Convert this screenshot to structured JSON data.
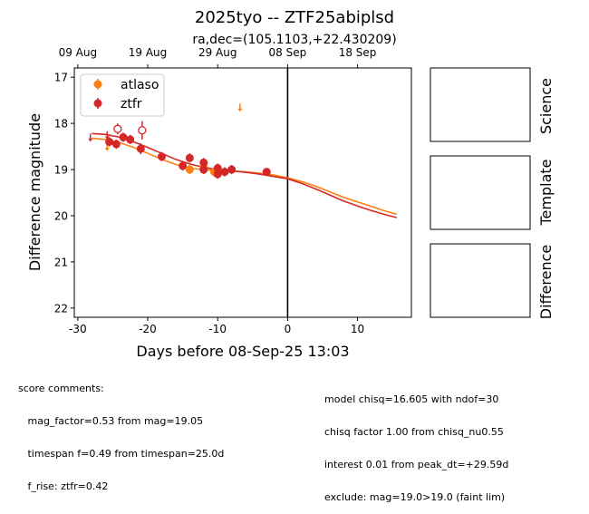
{
  "title": "2025tyo -- ZTF25abiplsd",
  "subtitle": "ra,dec=(105.1103,+22.430209)",
  "xlabel": "Days before 08-Sep-25 13:03",
  "ylabel": "Difference magnitude",
  "top_ticks": [
    {
      "label": "09 Aug",
      "x": -30
    },
    {
      "label": "19 Aug",
      "x": -20
    },
    {
      "label": "29 Aug",
      "x": -10
    },
    {
      "label": "08 Sep",
      "x": 0
    },
    {
      "label": "18 Sep",
      "x": 10
    }
  ],
  "cutout_labels": [
    "Science",
    "Template",
    "Difference"
  ],
  "comments": {
    "left": [
      "score comments:",
      "   mag_factor=0.53 from mag=19.05",
      "   timespan f=0.49 from timespan=25.0d",
      "   f_rise: ztfr=0.42"
    ],
    "right": [
      "model chisq=16.605 with ndof=30",
      "chisq factor 1.00 from chisq_nu0.55",
      "interest 0.01 from peak_dt=+29.59d",
      "exclude: mag=19.0>19.0 (faint lim)"
    ]
  },
  "chart_data": {
    "type": "scatter",
    "xlim": [
      -30.5,
      17.7
    ],
    "ylim": [
      22.2,
      16.8
    ],
    "y_inverted": true,
    "xticks": [
      -30,
      -20,
      -10,
      0,
      10
    ],
    "yticks": [
      17,
      18,
      19,
      20,
      21,
      22
    ],
    "legend": "top-left",
    "vline_x": 0,
    "series": [
      {
        "name": "atlaso",
        "color": "#ff7f0e",
        "points": [
          {
            "x": -14.0,
            "y": 19.0,
            "err": 0.1
          },
          {
            "x": -12.0,
            "y": 18.95,
            "err": 0.1
          },
          {
            "x": -10.5,
            "y": 19.05,
            "err": 0.1
          }
        ],
        "upper_limits": [
          {
            "x": -25.8,
            "y": 18.5
          },
          {
            "x": -6.8,
            "y": 17.65
          }
        ],
        "model": [
          {
            "x": -28.0,
            "y": 18.32
          },
          {
            "x": -26.0,
            "y": 18.35
          },
          {
            "x": -24.0,
            "y": 18.42
          },
          {
            "x": -22.0,
            "y": 18.52
          },
          {
            "x": -20.0,
            "y": 18.65
          },
          {
            "x": -18.0,
            "y": 18.78
          },
          {
            "x": -16.0,
            "y": 18.89
          },
          {
            "x": -14.0,
            "y": 18.97
          },
          {
            "x": -12.0,
            "y": 19.0
          },
          {
            "x": -10.0,
            "y": 19.02
          },
          {
            "x": -8.0,
            "y": 19.03
          },
          {
            "x": -6.0,
            "y": 19.05
          },
          {
            "x": -4.0,
            "y": 19.08
          },
          {
            "x": -2.0,
            "y": 19.12
          },
          {
            "x": 0.0,
            "y": 19.18
          },
          {
            "x": 2.0,
            "y": 19.26
          },
          {
            "x": 4.0,
            "y": 19.36
          },
          {
            "x": 6.0,
            "y": 19.48
          },
          {
            "x": 8.0,
            "y": 19.6
          },
          {
            "x": 10.0,
            "y": 19.7
          },
          {
            "x": 12.0,
            "y": 19.8
          },
          {
            "x": 14.0,
            "y": 19.9
          },
          {
            "x": 15.6,
            "y": 19.97
          }
        ]
      },
      {
        "name": "ztfr",
        "color": "#d62728",
        "points": [
          {
            "x": -25.5,
            "y": 18.4,
            "err": 0.1
          },
          {
            "x": -24.5,
            "y": 18.45,
            "err": 0.1
          },
          {
            "x": -23.5,
            "y": 18.3,
            "err": 0.1
          },
          {
            "x": -22.5,
            "y": 18.35,
            "err": 0.1
          },
          {
            "x": -21.0,
            "y": 18.55,
            "err": 0.12
          },
          {
            "x": -18.0,
            "y": 18.72,
            "err": 0.1
          },
          {
            "x": -15.0,
            "y": 18.92,
            "err": 0.1
          },
          {
            "x": -14.0,
            "y": 18.75,
            "err": 0.1
          },
          {
            "x": -12.0,
            "y": 18.85,
            "err": 0.1
          },
          {
            "x": -12.0,
            "y": 19.0,
            "err": 0.1
          },
          {
            "x": -10.0,
            "y": 19.1,
            "err": 0.1
          },
          {
            "x": -10.0,
            "y": 18.97,
            "err": 0.1
          },
          {
            "x": -9.0,
            "y": 19.05,
            "err": 0.1
          },
          {
            "x": -8.0,
            "y": 19.0,
            "err": 0.1
          },
          {
            "x": -3.0,
            "y": 19.05,
            "err": 0.08
          }
        ],
        "open_points": [
          {
            "x": -24.3,
            "y": 18.12,
            "err": 0.12
          },
          {
            "x": -20.8,
            "y": 18.15,
            "err": 0.2
          }
        ],
        "upper_limits": [
          {
            "x": -28.2,
            "y": 18.3
          },
          {
            "x": -25.8,
            "y": 18.25
          }
        ],
        "model": [
          {
            "x": -28.0,
            "y": 18.22
          },
          {
            "x": -26.0,
            "y": 18.24
          },
          {
            "x": -24.0,
            "y": 18.3
          },
          {
            "x": -22.0,
            "y": 18.4
          },
          {
            "x": -20.0,
            "y": 18.52
          },
          {
            "x": -18.0,
            "y": 18.65
          },
          {
            "x": -16.0,
            "y": 18.78
          },
          {
            "x": -14.0,
            "y": 18.88
          },
          {
            "x": -12.0,
            "y": 18.95
          },
          {
            "x": -10.0,
            "y": 19.0
          },
          {
            "x": -8.0,
            "y": 19.03
          },
          {
            "x": -6.0,
            "y": 19.06
          },
          {
            "x": -4.0,
            "y": 19.1
          },
          {
            "x": -2.0,
            "y": 19.15
          },
          {
            "x": 0.0,
            "y": 19.2
          },
          {
            "x": 2.0,
            "y": 19.3
          },
          {
            "x": 4.0,
            "y": 19.42
          },
          {
            "x": 6.0,
            "y": 19.55
          },
          {
            "x": 8.0,
            "y": 19.68
          },
          {
            "x": 10.0,
            "y": 19.79
          },
          {
            "x": 12.0,
            "y": 19.89
          },
          {
            "x": 14.0,
            "y": 19.98
          },
          {
            "x": 15.6,
            "y": 20.04
          }
        ]
      }
    ]
  }
}
